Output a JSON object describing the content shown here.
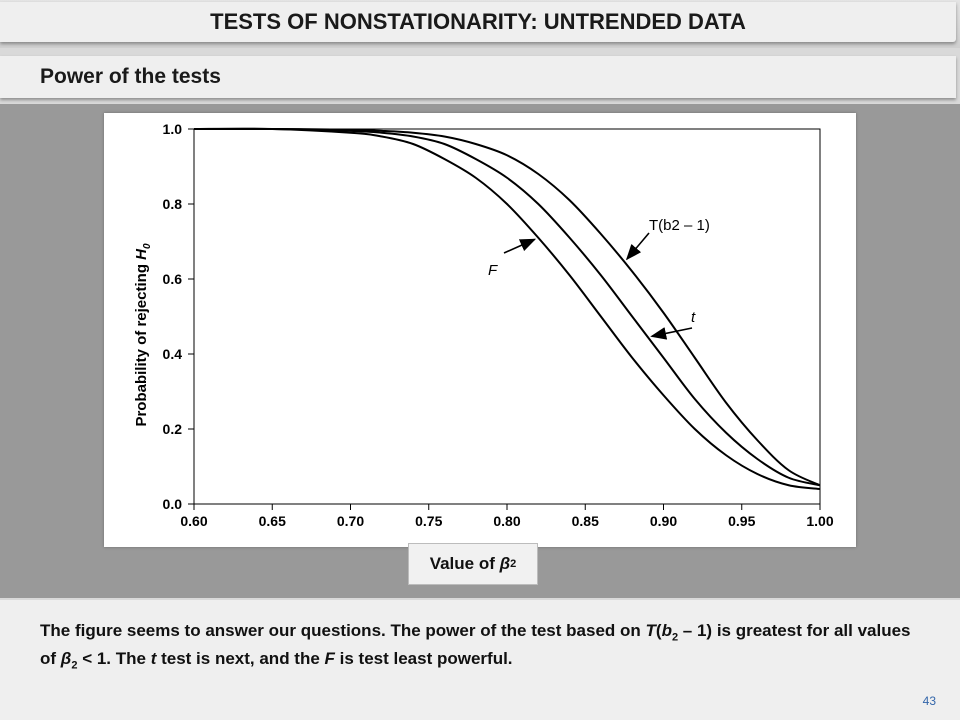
{
  "slide": {
    "title": "TESTS OF NONSTATIONARITY: UNTRENDED DATA",
    "subtitle": "Power of the tests",
    "page_number": "43",
    "xlabel_prefix": "Value of ",
    "xlabel_symbol": "β",
    "xlabel_sub": "2",
    "caption": {
      "p1": "The figure seems to answer our questions.  The power of the test based on ",
      "p2": "T",
      "p3": "(",
      "p4": "b",
      "p5": "2",
      "p6": " – 1) is greatest for all values of ",
      "p7": "β",
      "p8": "2",
      "p9": " < 1.  The ",
      "p10": "t",
      "p11": " test is next, and the ",
      "p12": "F",
      "p13": " is test least powerful."
    }
  },
  "colors": {
    "accent": "#3366aa",
    "curve": "#000000",
    "panel_gray": "#999999"
  },
  "chart_data": {
    "type": "line",
    "title": "",
    "xlabel": "Value of β2",
    "ylabel": "Probability of rejecting H0",
    "xlim": [
      0.6,
      1.0
    ],
    "ylim": [
      0.0,
      1.0
    ],
    "x_ticks": [
      "0.60",
      "0.65",
      "0.70",
      "0.75",
      "0.80",
      "0.85",
      "0.90",
      "0.95",
      "1.00"
    ],
    "y_ticks": [
      "0.0",
      "0.2",
      "0.4",
      "0.6",
      "0.8",
      "1.0"
    ],
    "grid": false,
    "series": [
      {
        "name": "T(b2 – 1)",
        "x": [
          0.6,
          0.65,
          0.7,
          0.72,
          0.74,
          0.76,
          0.78,
          0.8,
          0.82,
          0.84,
          0.86,
          0.88,
          0.9,
          0.92,
          0.94,
          0.96,
          0.98,
          1.0
        ],
        "y": [
          1.0,
          1.0,
          0.998,
          0.995,
          0.99,
          0.98,
          0.96,
          0.93,
          0.88,
          0.81,
          0.72,
          0.62,
          0.51,
          0.39,
          0.27,
          0.17,
          0.09,
          0.05
        ]
      },
      {
        "name": "t",
        "x": [
          0.6,
          0.65,
          0.7,
          0.72,
          0.74,
          0.76,
          0.78,
          0.8,
          0.82,
          0.84,
          0.86,
          0.88,
          0.9,
          0.92,
          0.94,
          0.96,
          0.98,
          1.0
        ],
        "y": [
          1.0,
          1.0,
          0.995,
          0.99,
          0.98,
          0.96,
          0.92,
          0.87,
          0.8,
          0.71,
          0.61,
          0.5,
          0.39,
          0.28,
          0.19,
          0.12,
          0.07,
          0.05
        ]
      },
      {
        "name": "F",
        "x": [
          0.6,
          0.65,
          0.7,
          0.72,
          0.74,
          0.76,
          0.78,
          0.8,
          0.82,
          0.84,
          0.86,
          0.88,
          0.9,
          0.92,
          0.94,
          0.96,
          0.98,
          1.0
        ],
        "y": [
          1.0,
          1.0,
          0.99,
          0.98,
          0.96,
          0.92,
          0.87,
          0.8,
          0.71,
          0.61,
          0.5,
          0.39,
          0.29,
          0.2,
          0.13,
          0.08,
          0.05,
          0.04
        ]
      }
    ],
    "annotations": [
      {
        "label": "T(b2 – 1)",
        "target_series": "T(b2 – 1)"
      },
      {
        "label": "t",
        "target_series": "t"
      },
      {
        "label": "F",
        "target_series": "F"
      }
    ]
  }
}
